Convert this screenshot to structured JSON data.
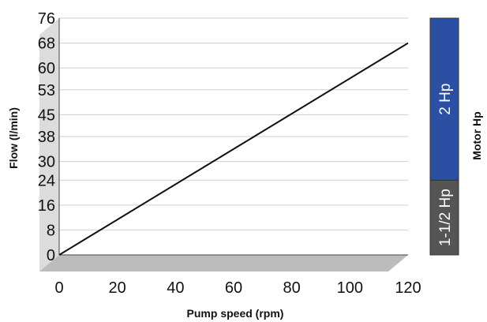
{
  "chart_data": {
    "type": "line",
    "xlabel": "Pump speed (rpm)",
    "ylabel": "Flow (l/min)",
    "x_ticks": [
      "0",
      "20",
      "40",
      "60",
      "80",
      "100",
      "120"
    ],
    "y_ticks": [
      "0",
      "8",
      "16",
      "24",
      "30",
      "38",
      "45",
      "53",
      "60",
      "68",
      "76"
    ],
    "xlim": [
      0,
      120
    ],
    "ylim": [
      0,
      76
    ],
    "grid": true,
    "series": [
      {
        "x": [
          0,
          120
        ],
        "y": [
          0,
          68
        ],
        "color": "#111111"
      }
    ],
    "motor": {
      "label": "Motor Hp",
      "bands": [
        {
          "label": "1-1/2 Hp",
          "from": 0,
          "to": 24,
          "color": "#555555"
        },
        {
          "label": "2 Hp",
          "from": 24,
          "to": 76,
          "color": "#2b4fa3"
        }
      ]
    }
  }
}
